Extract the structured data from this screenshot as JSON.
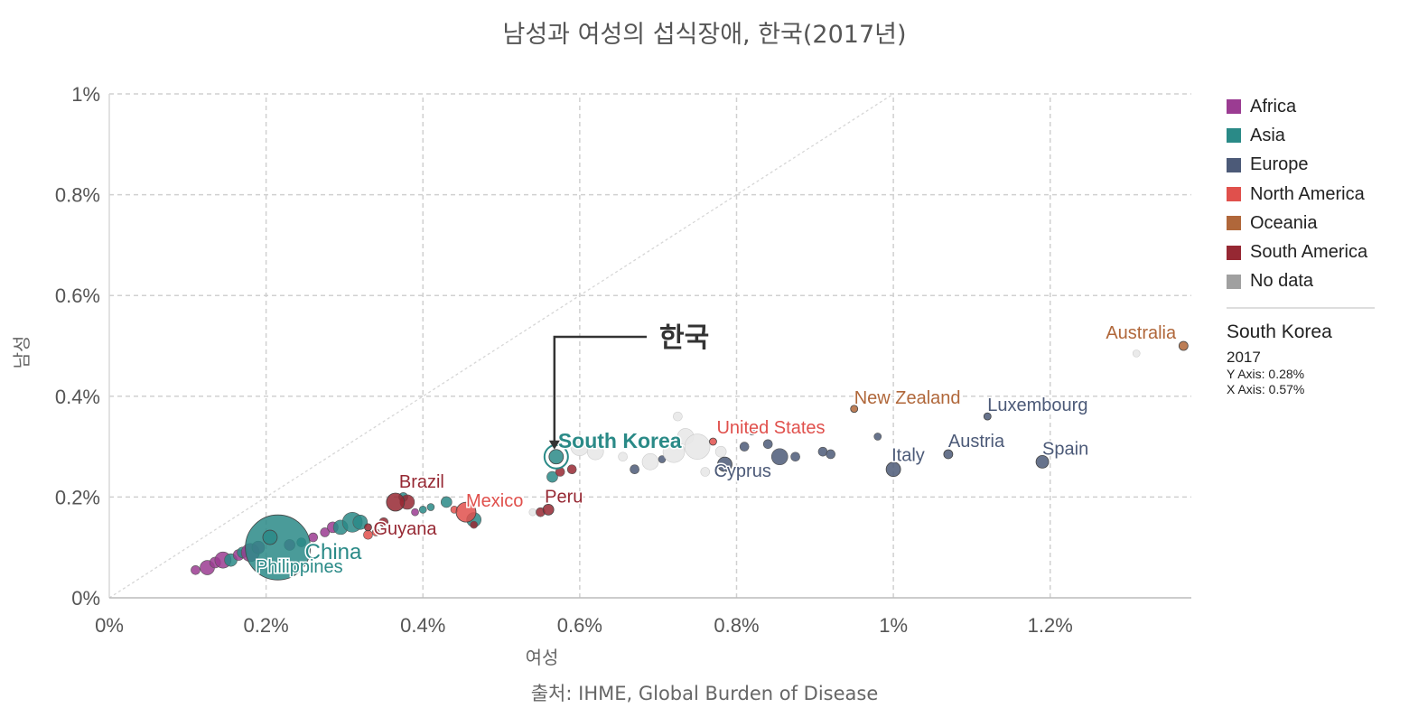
{
  "title": "남성과 여성의 섭식장애, 한국(2017년)",
  "source": "출처: IHME, Global Burden of Disease",
  "legend": [
    {
      "label": "Africa",
      "color": "#9b3c92"
    },
    {
      "label": "Asia",
      "color": "#2a8a87"
    },
    {
      "label": "Europe",
      "color": "#4c5a78"
    },
    {
      "label": "North America",
      "color": "#e0504c"
    },
    {
      "label": "Oceania",
      "color": "#b0673a"
    },
    {
      "label": "South America",
      "color": "#962833"
    },
    {
      "label": "No data",
      "color": "#a0a0a0"
    }
  ],
  "info": {
    "country": "South Korea",
    "year": "2017",
    "y_axis": "Y Axis: 0.28%",
    "x_axis": "X Axis: 0.57%"
  },
  "annotation": {
    "label": "한국"
  },
  "chart_data": {
    "type": "scatter",
    "title": "남성과 여성의 섭식장애, 한국(2017년)",
    "xlabel": "여성",
    "ylabel": "남성",
    "xlim": [
      0,
      1.38
    ],
    "ylim": [
      0,
      1.0
    ],
    "x_ticks": [
      0,
      0.2,
      0.4,
      0.6,
      0.8,
      1.0,
      1.2
    ],
    "x_tick_labels": [
      "0%",
      "0.2%",
      "0.4%",
      "0.6%",
      "0.8%",
      "1%",
      "1.2%"
    ],
    "y_ticks": [
      0,
      0.2,
      0.4,
      0.6,
      0.8,
      1.0
    ],
    "y_tick_labels": [
      "0%",
      "0.2%",
      "0.4%",
      "0.6%",
      "0.8%",
      "1%"
    ],
    "grid": true,
    "diagonal_reference": true,
    "labeled_points": [
      {
        "name": "South Korea",
        "x": 0.57,
        "y": 0.28,
        "region": "Asia",
        "r": 8,
        "highlight": true,
        "label_dx": 2,
        "label_dy": -10,
        "bold": true
      },
      {
        "name": "China",
        "x": 0.215,
        "y": 0.1,
        "region": "Asia",
        "r": 36,
        "label_dx": 30,
        "label_dy": 13,
        "size": 24
      },
      {
        "name": "Philippines",
        "x": 0.205,
        "y": 0.12,
        "region": "Asia",
        "r": 8,
        "label_dx": -16,
        "label_dy": 39
      },
      {
        "name": "Brazil",
        "x": 0.365,
        "y": 0.19,
        "region": "South America",
        "r": 10,
        "label_dx": 4,
        "label_dy": -16
      },
      {
        "name": "Guyana",
        "x": 0.33,
        "y": 0.14,
        "region": "South America",
        "r": 4,
        "label_dx": 6,
        "label_dy": 8
      },
      {
        "name": "Mexico",
        "x": 0.455,
        "y": 0.17,
        "region": "North America",
        "r": 11,
        "label_dx": 0,
        "label_dy": -6
      },
      {
        "name": "Peru",
        "x": 0.56,
        "y": 0.175,
        "region": "South America",
        "r": 6,
        "label_dx": -4,
        "label_dy": -8
      },
      {
        "name": "United States",
        "x": 0.77,
        "y": 0.31,
        "region": "North America",
        "r": 4,
        "label_dx": 4,
        "label_dy": -9
      },
      {
        "name": "Cyprus",
        "x": 0.785,
        "y": 0.265,
        "region": "Europe",
        "r": 8,
        "label_dx": -12,
        "label_dy": 14
      },
      {
        "name": "Italy",
        "x": 1.0,
        "y": 0.255,
        "region": "Europe",
        "r": 8,
        "label_dx": -2,
        "label_dy": -9
      },
      {
        "name": "Austria",
        "x": 1.07,
        "y": 0.285,
        "region": "Europe",
        "r": 5,
        "label_dx": 0,
        "label_dy": -8
      },
      {
        "name": "Spain",
        "x": 1.19,
        "y": 0.27,
        "region": "Europe",
        "r": 7,
        "label_dx": 0,
        "label_dy": -8
      },
      {
        "name": "Luxembourg",
        "x": 1.12,
        "y": 0.36,
        "region": "Europe",
        "r": 4,
        "label_dx": 0,
        "label_dy": -6
      },
      {
        "name": "New Zealand",
        "x": 0.95,
        "y": 0.375,
        "region": "Oceania",
        "r": 4,
        "label_dx": 0,
        "label_dy": -6
      },
      {
        "name": "Australia",
        "x": 1.37,
        "y": 0.5,
        "region": "Oceania",
        "r": 5,
        "label_dx": -86,
        "label_dy": -8
      }
    ],
    "points": [
      {
        "x": 0.11,
        "y": 0.055,
        "region": "Africa",
        "r": 5
      },
      {
        "x": 0.125,
        "y": 0.06,
        "region": "Africa",
        "r": 8
      },
      {
        "x": 0.135,
        "y": 0.07,
        "region": "Africa",
        "r": 6
      },
      {
        "x": 0.145,
        "y": 0.075,
        "region": "Africa",
        "r": 9
      },
      {
        "x": 0.155,
        "y": 0.075,
        "region": "Asia",
        "r": 7
      },
      {
        "x": 0.165,
        "y": 0.085,
        "region": "Africa",
        "r": 6
      },
      {
        "x": 0.17,
        "y": 0.09,
        "region": "Asia",
        "r": 6
      },
      {
        "x": 0.18,
        "y": 0.09,
        "region": "Africa",
        "r": 10
      },
      {
        "x": 0.19,
        "y": 0.1,
        "region": "Africa",
        "r": 7
      },
      {
        "x": 0.23,
        "y": 0.105,
        "region": "Africa",
        "r": 6
      },
      {
        "x": 0.245,
        "y": 0.11,
        "region": "Asia",
        "r": 5
      },
      {
        "x": 0.26,
        "y": 0.12,
        "region": "Africa",
        "r": 5
      },
      {
        "x": 0.275,
        "y": 0.13,
        "region": "Africa",
        "r": 5
      },
      {
        "x": 0.285,
        "y": 0.14,
        "region": "Africa",
        "r": 6
      },
      {
        "x": 0.295,
        "y": 0.14,
        "region": "Asia",
        "r": 8
      },
      {
        "x": 0.31,
        "y": 0.15,
        "region": "Asia",
        "r": 11
      },
      {
        "x": 0.32,
        "y": 0.15,
        "region": "Asia",
        "r": 8
      },
      {
        "x": 0.33,
        "y": 0.125,
        "region": "North America",
        "r": 5
      },
      {
        "x": 0.34,
        "y": 0.13,
        "region": "North America",
        "r": 4
      },
      {
        "x": 0.35,
        "y": 0.15,
        "region": "South America",
        "r": 5
      },
      {
        "x": 0.375,
        "y": 0.2,
        "region": "Asia",
        "r": 5
      },
      {
        "x": 0.38,
        "y": 0.19,
        "region": "South America",
        "r": 8
      },
      {
        "x": 0.39,
        "y": 0.17,
        "region": "Africa",
        "r": 4
      },
      {
        "x": 0.4,
        "y": 0.175,
        "region": "Asia",
        "r": 4
      },
      {
        "x": 0.41,
        "y": 0.18,
        "region": "Asia",
        "r": 4
      },
      {
        "x": 0.43,
        "y": 0.19,
        "region": "Asia",
        "r": 6
      },
      {
        "x": 0.44,
        "y": 0.175,
        "region": "North America",
        "r": 4
      },
      {
        "x": 0.465,
        "y": 0.155,
        "region": "Asia",
        "r": 8
      },
      {
        "x": 0.465,
        "y": 0.145,
        "region": "South America",
        "r": 4
      },
      {
        "x": 0.54,
        "y": 0.17,
        "region": "No data",
        "r": 4
      },
      {
        "x": 0.55,
        "y": 0.17,
        "region": "South America",
        "r": 5
      },
      {
        "x": 0.565,
        "y": 0.24,
        "region": "Asia",
        "r": 6
      },
      {
        "x": 0.575,
        "y": 0.25,
        "region": "South America",
        "r": 5
      },
      {
        "x": 0.59,
        "y": 0.255,
        "region": "South America",
        "r": 5
      },
      {
        "x": 0.6,
        "y": 0.3,
        "region": "No data",
        "r": 10
      },
      {
        "x": 0.62,
        "y": 0.29,
        "region": "No data",
        "r": 9
      },
      {
        "x": 0.655,
        "y": 0.28,
        "region": "No data",
        "r": 5
      },
      {
        "x": 0.67,
        "y": 0.255,
        "region": "Europe",
        "r": 5
      },
      {
        "x": 0.69,
        "y": 0.27,
        "region": "No data",
        "r": 9
      },
      {
        "x": 0.705,
        "y": 0.275,
        "region": "Europe",
        "r": 4
      },
      {
        "x": 0.72,
        "y": 0.29,
        "region": "No data",
        "r": 12
      },
      {
        "x": 0.725,
        "y": 0.36,
        "region": "No data",
        "r": 5
      },
      {
        "x": 0.735,
        "y": 0.32,
        "region": "No data",
        "r": 9
      },
      {
        "x": 0.75,
        "y": 0.3,
        "region": "No data",
        "r": 14
      },
      {
        "x": 0.76,
        "y": 0.25,
        "region": "No data",
        "r": 5
      },
      {
        "x": 0.78,
        "y": 0.29,
        "region": "No data",
        "r": 6
      },
      {
        "x": 0.81,
        "y": 0.3,
        "region": "Europe",
        "r": 5
      },
      {
        "x": 0.82,
        "y": 0.33,
        "region": "Europe",
        "r": 4
      },
      {
        "x": 0.84,
        "y": 0.305,
        "region": "Europe",
        "r": 5
      },
      {
        "x": 0.855,
        "y": 0.28,
        "region": "Europe",
        "r": 9
      },
      {
        "x": 0.875,
        "y": 0.28,
        "region": "Europe",
        "r": 5
      },
      {
        "x": 0.91,
        "y": 0.29,
        "region": "Europe",
        "r": 5
      },
      {
        "x": 0.92,
        "y": 0.285,
        "region": "Europe",
        "r": 5
      },
      {
        "x": 0.98,
        "y": 0.32,
        "region": "Europe",
        "r": 4
      },
      {
        "x": 1.31,
        "y": 0.485,
        "region": "No data",
        "r": 4
      }
    ]
  }
}
